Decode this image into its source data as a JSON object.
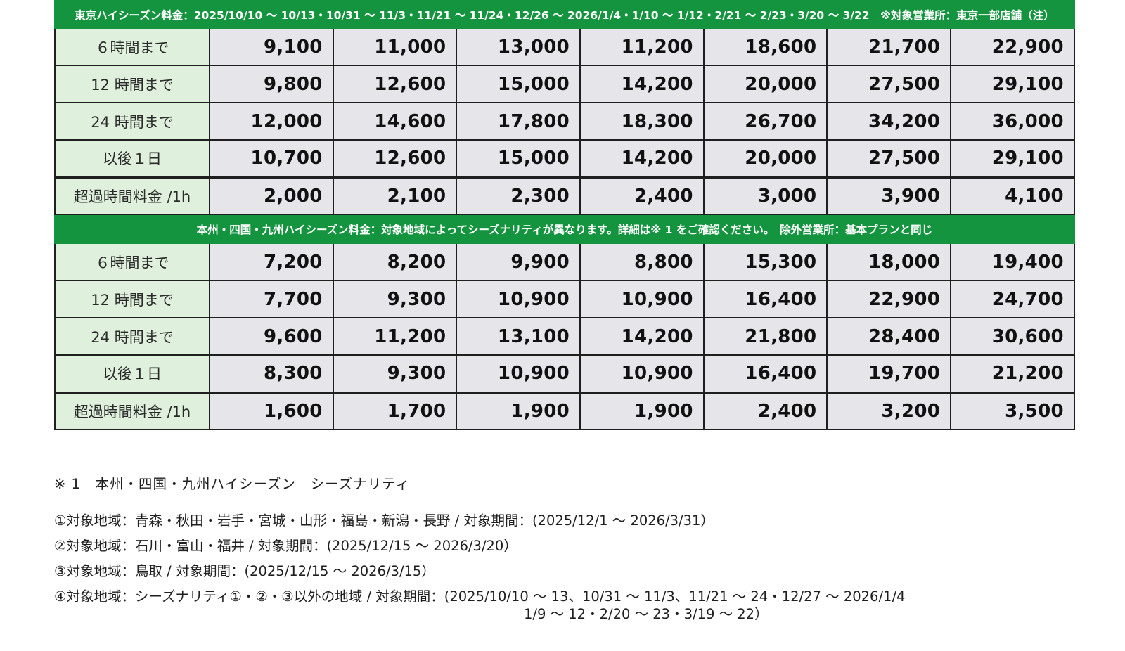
{
  "sections": [
    {
      "header": "東京ハイシーズン料金：2025/10/10 ～ 10/13・10/31 ～ 11/3・11/21 ～ 11/24・12/26 ～ 2026/1/4・1/10 ～ 1/12・2/21 ～ 2/23・3/20 ～ 3/22　※対象営業所：東京一部店舗（注）",
      "rows": [
        {
          "label": "６時間まで",
          "values": [
            "9,100",
            "11,000",
            "13,000",
            "11,200",
            "18,600",
            "21,700",
            "22,900"
          ]
        },
        {
          "label": "12 時間まで",
          "values": [
            "9,800",
            "12,600",
            "15,000",
            "14,200",
            "20,000",
            "27,500",
            "29,100"
          ]
        },
        {
          "label": "24 時間まで",
          "values": [
            "12,000",
            "14,600",
            "17,800",
            "18,300",
            "26,700",
            "34,200",
            "36,000"
          ]
        },
        {
          "label": "以後１日",
          "values": [
            "10,700",
            "12,600",
            "15,000",
            "14,200",
            "20,000",
            "27,500",
            "29,100"
          ]
        },
        {
          "label": "超過時間料金 /1h",
          "values": [
            "2,000",
            "2,100",
            "2,300",
            "2,400",
            "3,000",
            "3,900",
            "4,100"
          ]
        }
      ]
    },
    {
      "header": "本州・四国・九州ハイシーズン料金：対象地域によってシーズナリティが異なります。詳細は※ 1 をご確認ください。　除外営業所：基本プランと同じ",
      "rows": [
        {
          "label": "６時間まで",
          "values": [
            "7,200",
            "8,200",
            "9,900",
            "8,800",
            "15,300",
            "18,000",
            "19,400"
          ]
        },
        {
          "label": "12 時間まで",
          "values": [
            "7,700",
            "9,300",
            "10,900",
            "10,900",
            "16,400",
            "22,900",
            "24,700"
          ]
        },
        {
          "label": "24 時間まで",
          "values": [
            "9,600",
            "11,200",
            "13,100",
            "14,200",
            "21,800",
            "28,400",
            "30,600"
          ]
        },
        {
          "label": "以後１日",
          "values": [
            "8,300",
            "9,300",
            "10,900",
            "10,900",
            "16,400",
            "19,700",
            "21,200"
          ]
        },
        {
          "label": "超過時間料金 /1h",
          "values": [
            "1,600",
            "1,700",
            "1,900",
            "1,900",
            "2,400",
            "3,200",
            "3,500"
          ]
        }
      ]
    }
  ],
  "notes": {
    "title": "※ 1　本州・四国・九州ハイシーズン　シーズナリティ",
    "items": [
      "①対象地域：青森・秋田・岩手・宮城・山形・福島・新潟・長野 / 対象期間：(2025/12/1 ～ 2026/3/31）",
      "②対象地域：石川・富山・福井 / 対象期間：(2025/12/15 ～ 2026/3/20）",
      "③対象地域：鳥取 / 対象期間：(2025/12/15 ～ 2026/3/15）",
      "④対象地域：シーズナリティ①・②・③以外の地域 / 対象期間：(2025/10/10 ～ 13、10/31 ～ 11/3、11/21 ～ 24・12/27 ～ 2026/1/4"
    ],
    "continuation": "1/9 ～ 12・2/20 ～ 23・3/19 ～ 22）"
  }
}
